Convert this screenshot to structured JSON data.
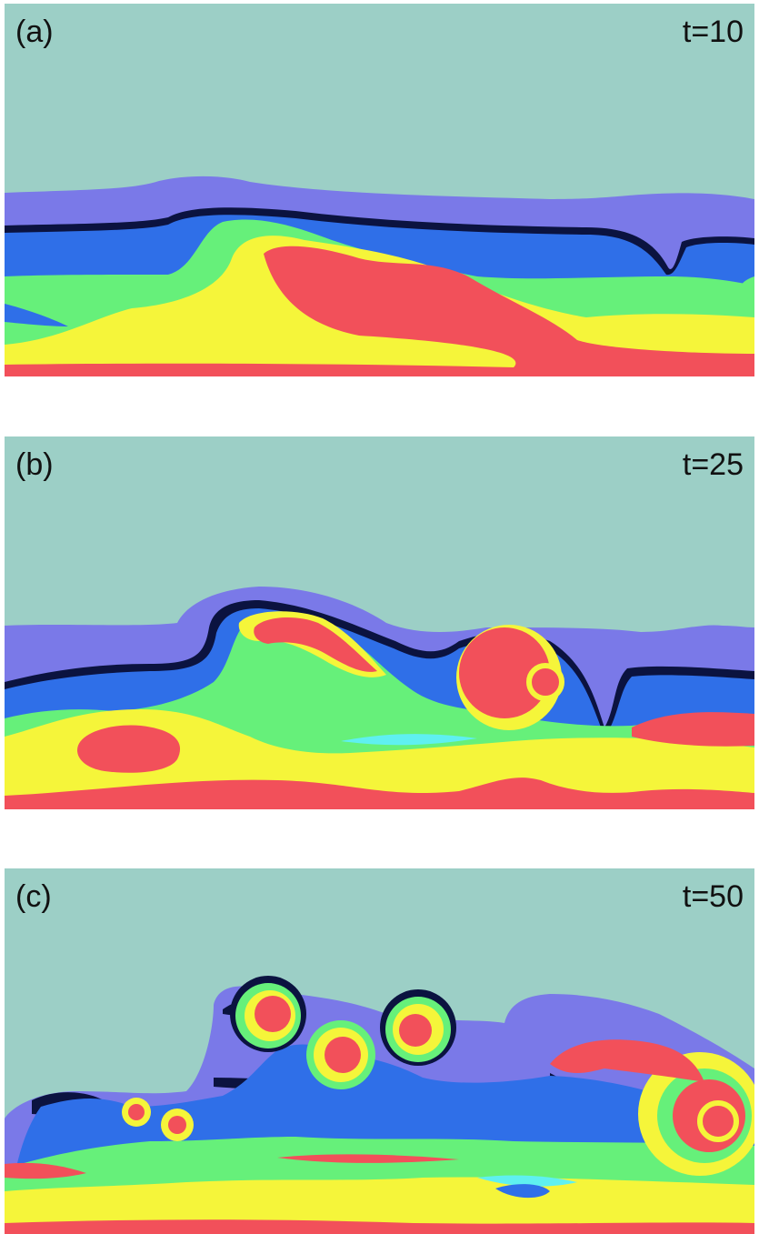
{
  "panels": [
    {
      "label": "(a)",
      "time": "t=10"
    },
    {
      "label": "(b)",
      "time": "t=25"
    },
    {
      "label": "(c)",
      "time": "t=50"
    }
  ],
  "colors": {
    "background_fluid": "#9ccfc6",
    "violet": "#7a79e8",
    "blue": "#2f6fe8",
    "dark_navy": "#0b1340",
    "cyan": "#5ff0f0",
    "green": "#66f07a",
    "yellow": "#f5f53a",
    "red": "#f2505a"
  }
}
